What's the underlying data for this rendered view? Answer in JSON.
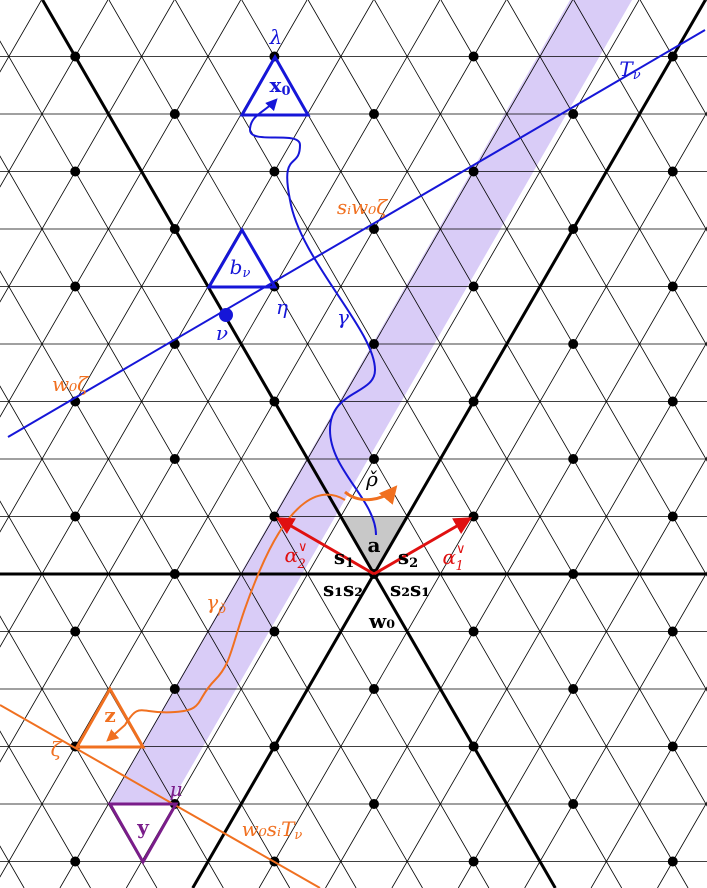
{
  "labels": [
    {
      "text": "λ"
    },
    {
      "text": "x",
      "sub": "0"
    },
    {
      "text": "T",
      "sub": "ν"
    },
    {
      "text": "sᵢw₀ζ"
    },
    {
      "text": "b",
      "sub": "ν"
    },
    {
      "text": "η"
    },
    {
      "text": "γ"
    },
    {
      "text": "ν"
    },
    {
      "text": "w₀ζ"
    },
    {
      "text": "ρ̌"
    },
    {
      "text": "a"
    },
    {
      "text": "s",
      "sub": "1"
    },
    {
      "text": "s",
      "sub": "2"
    },
    {
      "text": "α",
      "sub": "2",
      "sup": "∨"
    },
    {
      "text": "α",
      "sub": "1",
      "sup": "∨"
    },
    {
      "text": "s₁s₂"
    },
    {
      "text": "s₂s₁"
    },
    {
      "text": "w₀"
    },
    {
      "text": "γ",
      "sub": "ρ̌"
    },
    {
      "text": "z"
    },
    {
      "text": "ζ"
    },
    {
      "text": "μ"
    },
    {
      "text": "y"
    },
    {
      "text": "w₀sᵢT",
      "sub": "ν"
    }
  ]
}
